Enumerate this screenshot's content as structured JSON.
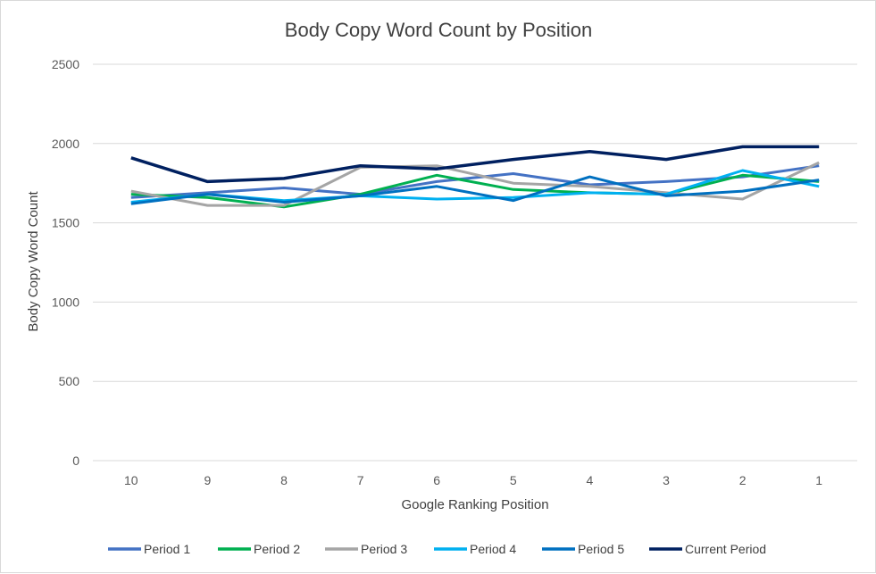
{
  "chart_data": {
    "type": "line",
    "title": "Body Copy Word Count by Position",
    "xlabel": "Google Ranking Position",
    "ylabel": "Body Copy Word Count",
    "categories": [
      "10",
      "9",
      "8",
      "7",
      "6",
      "5",
      "4",
      "3",
      "2",
      "1"
    ],
    "ylim": [
      0,
      2500
    ],
    "yticks": [
      0,
      500,
      1000,
      1500,
      2000,
      2500
    ],
    "grid": true,
    "legend_position": "bottom",
    "series": [
      {
        "name": "Period 1",
        "color": "#4472C4",
        "values": [
          1660,
          1690,
          1720,
          1680,
          1760,
          1810,
          1740,
          1760,
          1790,
          1860
        ]
      },
      {
        "name": "Period 2",
        "color": "#00B050",
        "values": [
          1680,
          1660,
          1600,
          1680,
          1800,
          1710,
          1690,
          1680,
          1800,
          1760
        ]
      },
      {
        "name": "Period 3",
        "color": "#A5A5A5",
        "values": [
          1700,
          1610,
          1610,
          1850,
          1860,
          1750,
          1730,
          1690,
          1650,
          1880
        ]
      },
      {
        "name": "Period 4",
        "color": "#00B0F0",
        "values": [
          1630,
          1680,
          1640,
          1670,
          1650,
          1660,
          1690,
          1680,
          1830,
          1730
        ]
      },
      {
        "name": "Period 5",
        "color": "#0070C0",
        "values": [
          1620,
          1680,
          1630,
          1670,
          1730,
          1640,
          1790,
          1670,
          1700,
          1770
        ]
      },
      {
        "name": "Current Period",
        "color": "#002060",
        "values": [
          1910,
          1760,
          1780,
          1860,
          1840,
          1900,
          1950,
          1900,
          1980,
          1980
        ]
      }
    ]
  }
}
